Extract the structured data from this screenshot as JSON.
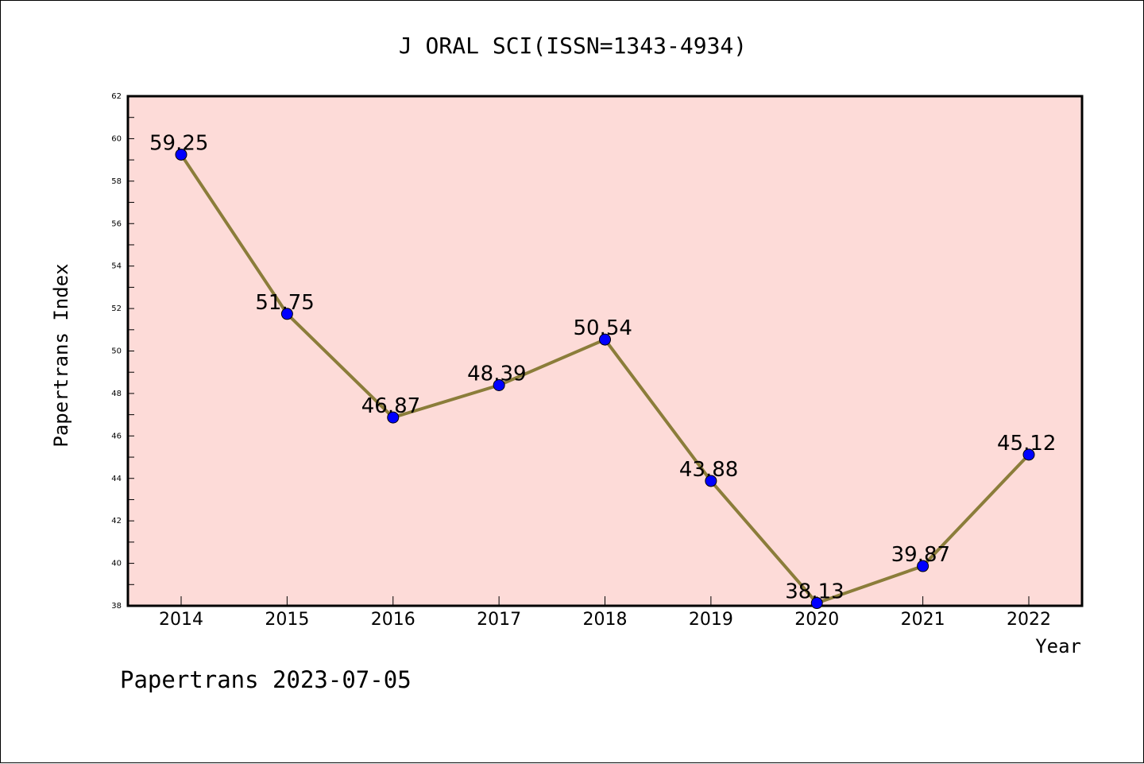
{
  "chart_data": {
    "type": "line",
    "title": "J ORAL SCI(ISSN=1343-4934)",
    "xlabel": "Year",
    "ylabel": "Papertrans Index",
    "categories": [
      "2014",
      "2015",
      "2016",
      "2017",
      "2018",
      "2019",
      "2020",
      "2021",
      "2022"
    ],
    "series": [
      {
        "values": [
          59.25,
          51.75,
          46.87,
          48.39,
          50.54,
          43.88,
          38.13,
          39.87,
          45.12
        ]
      }
    ],
    "data_labels": [
      "59.25",
      "51.75",
      "46.87",
      "48.39",
      "50.54",
      "43.88",
      "38.13",
      "39.87",
      "45.12"
    ],
    "ylim": [
      38,
      62
    ],
    "yticks": [
      "38",
      "40",
      "42",
      "44",
      "46",
      "48",
      "50",
      "52",
      "54",
      "56",
      "58",
      "60",
      "62"
    ],
    "grid": false,
    "colors": {
      "plot_background": "#fddbd8",
      "line": "#8b7d3a",
      "marker": "#0000ff"
    }
  },
  "footer": {
    "text": "Papertrans 2023-07-05"
  }
}
